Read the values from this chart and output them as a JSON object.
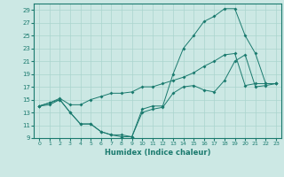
{
  "title": "",
  "xlabel": "Humidex (Indice chaleur)",
  "bg_color": "#cce8e4",
  "line_color": "#1a7a6e",
  "grid_color": "#aad4ce",
  "xlim": [
    -0.5,
    23.5
  ],
  "ylim": [
    9,
    30
  ],
  "xticks": [
    0,
    1,
    2,
    3,
    4,
    5,
    6,
    7,
    8,
    9,
    10,
    11,
    12,
    13,
    14,
    15,
    16,
    17,
    18,
    19,
    20,
    21,
    22,
    23
  ],
  "yticks": [
    9,
    11,
    13,
    15,
    17,
    19,
    21,
    23,
    25,
    27,
    29
  ],
  "line1_x": [
    0,
    1,
    2,
    3,
    4,
    5,
    6,
    7,
    8,
    9,
    10,
    11,
    12,
    13,
    14,
    15,
    16,
    17,
    18,
    19,
    20,
    21,
    22,
    23
  ],
  "line1_y": [
    14.0,
    14.2,
    15.0,
    13.0,
    11.2,
    11.2,
    10.0,
    9.5,
    9.5,
    9.2,
    13.0,
    13.5,
    13.8,
    16.0,
    17.0,
    17.2,
    16.5,
    16.2,
    18.0,
    21.0,
    22.0,
    17.0,
    17.2,
    17.5
  ],
  "line2_x": [
    0,
    1,
    2,
    3,
    4,
    5,
    6,
    7,
    8,
    9,
    10,
    11,
    12,
    13,
    14,
    15,
    16,
    17,
    18,
    19,
    20,
    21,
    22,
    23
  ],
  "line2_y": [
    14.0,
    14.5,
    15.2,
    14.2,
    14.2,
    15.0,
    15.5,
    16.0,
    16.0,
    16.2,
    17.0,
    17.0,
    17.5,
    18.0,
    18.5,
    19.2,
    20.2,
    21.0,
    22.0,
    22.2,
    17.2,
    17.5,
    17.5,
    17.5
  ],
  "line3_x": [
    0,
    1,
    2,
    3,
    4,
    5,
    6,
    7,
    8,
    9,
    10,
    11,
    12,
    13,
    14,
    15,
    16,
    17,
    18,
    19,
    20,
    21,
    22,
    23
  ],
  "line3_y": [
    14.0,
    14.5,
    15.0,
    13.0,
    11.2,
    11.2,
    10.0,
    9.5,
    9.2,
    9.2,
    13.5,
    14.0,
    14.0,
    19.0,
    23.0,
    25.0,
    27.2,
    28.0,
    29.2,
    29.2,
    25.0,
    22.2,
    17.5,
    17.5
  ]
}
